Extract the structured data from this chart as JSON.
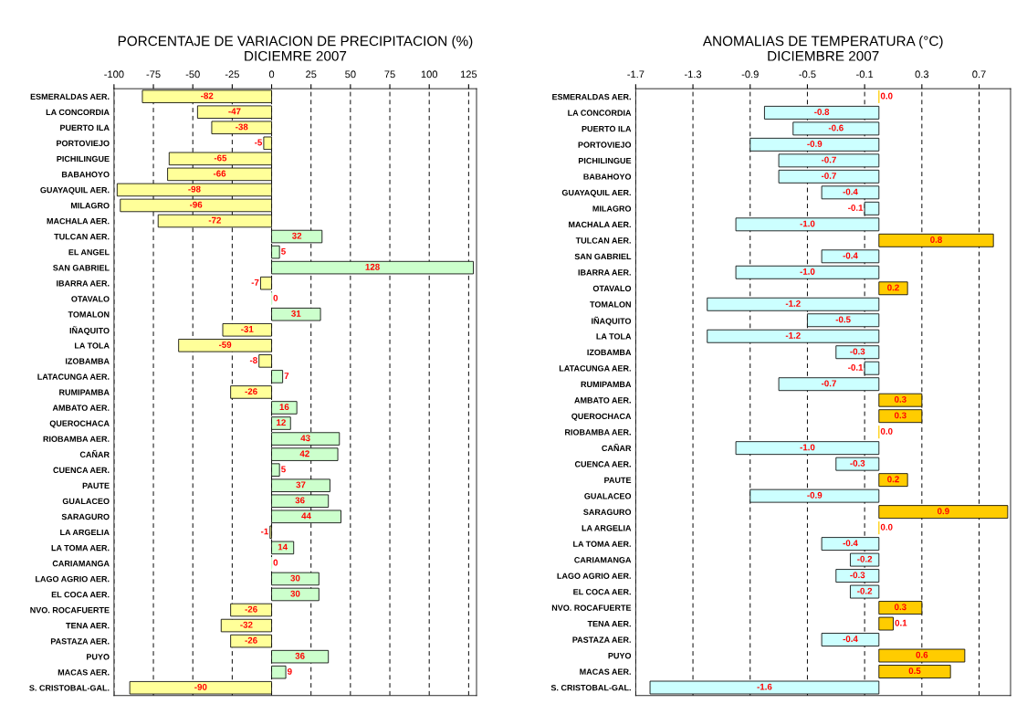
{
  "chart_data": [
    {
      "type": "bar",
      "orientation": "horizontal",
      "title": "PORCENTAJE DE VARIACION DE PRECIPITACION (%)\nDICIEMRE 2007",
      "categories": [
        "ESMERALDAS AER.",
        "LA CONCORDIA",
        "PUERTO ILA",
        "PORTOVIEJO",
        "PICHILINGUE",
        "BABAHOYO",
        "GUAYAQUIL AER.",
        "MILAGRO",
        "MACHALA AER.",
        "TULCAN AER.",
        "EL ANGEL",
        "SAN GABRIEL",
        "IBARRA AER.",
        "OTAVALO",
        "TOMALON",
        "IÑAQUITO",
        "LA TOLA",
        "IZOBAMBA",
        "LATACUNGA AER.",
        "RUMIPAMBA",
        "AMBATO AER.",
        "QUEROCHACA",
        "RIOBAMBA AER.",
        "CAÑAR",
        "CUENCA AER.",
        "PAUTE",
        "GUALACEO",
        "SARAGURO",
        "LA ARGELIA",
        "LA TOMA AER.",
        "CARIAMANGA",
        "LAGO AGRIO AER.",
        "EL COCA AER.",
        "NVO. ROCAFUERTE",
        "TENA AER.",
        "PASTAZA AER.",
        "PUYO",
        "MACAS AER.",
        "S. CRISTOBAL-GAL."
      ],
      "values": [
        -82,
        -47,
        -38,
        -5,
        -65,
        -66,
        -98,
        -96,
        -72,
        32,
        5,
        128,
        -7,
        0,
        31,
        -31,
        -59,
        -8,
        7,
        -26,
        16,
        12,
        43,
        42,
        5,
        37,
        36,
        44,
        -1,
        14,
        0,
        30,
        30,
        -26,
        -32,
        -26,
        36,
        9,
        -90
      ],
      "colors": [
        "#ffff99",
        "#ffff99",
        "#ffff99",
        "#ffff99",
        "#ffff99",
        "#ffff99",
        "#ffff99",
        "#ffff99",
        "#ffff99",
        "#ccffcc",
        "#ccffcc",
        "#ccffcc",
        "#ffff99",
        "#ccffcc",
        "#ccffcc",
        "#ffff99",
        "#ffff99",
        "#ffff99",
        "#ccffcc",
        "#ffff99",
        "#ccffcc",
        "#ccffcc",
        "#ccffcc",
        "#ccffcc",
        "#ccffcc",
        "#ccffcc",
        "#ccffcc",
        "#ccffcc",
        "#ffff99",
        "#ccffcc",
        "#ccffcc",
        "#ccffcc",
        "#ccffcc",
        "#ffff99",
        "#ffff99",
        "#ffff99",
        "#ccffcc",
        "#ccffcc",
        "#ffff99"
      ],
      "xlim": [
        -100,
        130
      ],
      "xticks": [
        -100,
        -75,
        -50,
        -25,
        0,
        25,
        50,
        75,
        100,
        125
      ],
      "grid": "x",
      "data_labels": true
    },
    {
      "type": "bar",
      "orientation": "horizontal",
      "title": "ANOMALIAS DE TEMPERATURA (°C)\nDICIEMBRE 2007",
      "categories": [
        "ESMERALDAS AER.",
        "LA CONCORDIA",
        "PUERTO ILA",
        "PORTOVIEJO",
        "PICHILINGUE",
        "BABAHOYO",
        "GUAYAQUIL AER.",
        "MILAGRO",
        "MACHALA AER.",
        "TULCAN AER.",
        "SAN GABRIEL",
        "IBARRA AER.",
        "OTAVALO",
        "TOMALON",
        "IÑAQUITO",
        "LA TOLA",
        "IZOBAMBA",
        "LATACUNGA AER.",
        "RUMIPAMBA",
        "AMBATO AER.",
        "QUEROCHACA",
        "RIOBAMBA AER.",
        "CAÑAR",
        "CUENCA AER.",
        "PAUTE",
        "GUALACEO",
        "SARAGURO",
        "LA ARGELIA",
        "LA TOMA AER.",
        "CARIAMANGA",
        "LAGO AGRIO AER.",
        "EL COCA AER.",
        "NVO. ROCAFUERTE",
        "TENA AER.",
        "PASTAZA AER.",
        "PUYO",
        "MACAS AER.",
        "S. CRISTOBAL-GAL."
      ],
      "values": [
        0.0,
        -0.8,
        -0.6,
        -0.9,
        -0.7,
        -0.7,
        -0.4,
        -0.1,
        -1.0,
        0.8,
        -0.4,
        -1.0,
        0.2,
        -1.2,
        -0.5,
        -1.2,
        -0.3,
        -0.1,
        -0.7,
        0.3,
        0.3,
        0.0,
        -1.0,
        -0.3,
        0.2,
        -0.9,
        0.9,
        0.0,
        -0.4,
        -0.2,
        -0.3,
        -0.2,
        0.3,
        0.1,
        -0.4,
        0.6,
        0.5,
        -1.6
      ],
      "value_labels": [
        "0.0",
        "-0.8",
        "-0.6",
        "-0.9",
        "-0.7",
        "-0.7",
        "-0.4",
        "-0.1",
        "-1.0",
        "0.8",
        "-0.4",
        "-1.0",
        "0.2",
        "-1.2",
        "-0.5",
        "-1.2",
        "-0.3",
        "-0.1",
        "-0.7",
        "0.3",
        "0.3",
        "0.0",
        "-1.0",
        "-0.3",
        "0.2",
        "-0.9",
        "0.9",
        "0.0",
        "-0.4",
        "-0.2",
        "-0.3",
        "-0.2",
        "0.3",
        "0.1",
        "-0.4",
        "0.6",
        "0.5",
        "-1.6"
      ],
      "colors": [
        "#ffcc00",
        "#ccffff",
        "#ccffff",
        "#ccffff",
        "#ccffff",
        "#ccffff",
        "#ccffff",
        "#ccffff",
        "#ccffff",
        "#ffcc00",
        "#ccffff",
        "#ccffff",
        "#ffcc00",
        "#ccffff",
        "#ccffff",
        "#ccffff",
        "#ccffff",
        "#ccffff",
        "#ccffff",
        "#ffcc00",
        "#ffcc00",
        "#ffcc00",
        "#ccffff",
        "#ccffff",
        "#ffcc00",
        "#ccffff",
        "#ffcc00",
        "#ffcc00",
        "#ccffff",
        "#ccffff",
        "#ccffff",
        "#ccffff",
        "#ffcc00",
        "#ffcc00",
        "#ccffff",
        "#ffcc00",
        "#ffcc00",
        "#ccffff"
      ],
      "xlim": [
        -1.7,
        0.92
      ],
      "xticks": [
        -1.7,
        -1.3,
        -0.9,
        -0.5,
        -0.1,
        0.3,
        0.7
      ],
      "grid": "x"
    }
  ]
}
